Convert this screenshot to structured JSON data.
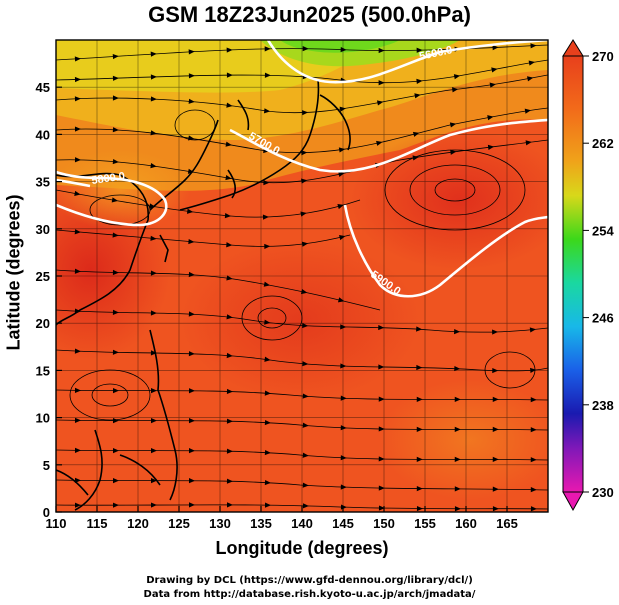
{
  "title": "GSM 18Z23Jun2025 (500.0hPa)",
  "axes": {
    "xlabel": "Longitude (degrees)",
    "ylabel": "Latitude  (degrees)",
    "x_ticks": [
      "110",
      "115",
      "120",
      "125",
      "130",
      "135",
      "140",
      "145",
      "150",
      "155",
      "160",
      "165"
    ],
    "y_ticks": [
      "0",
      "5",
      "10",
      "15",
      "20",
      "25",
      "30",
      "35",
      "40",
      "45"
    ]
  },
  "colorbar": {
    "labels": [
      "270",
      "262",
      "254",
      "246",
      "238",
      "230"
    ],
    "min": 230,
    "max": 270
  },
  "contours": [
    {
      "label": "5900.0",
      "value": 5900
    },
    {
      "label": "5800.0",
      "value": 5800
    },
    {
      "label": "5700.0",
      "value": 5700
    },
    {
      "label": "5600.0",
      "value": 5600
    }
  ],
  "credits": {
    "line1": "Drawing by DCL (https://www.gfd-dennou.org/library/dcl/)",
    "line2": "Data from http://database.rish.kyoto-u.ac.jp/arch/jmadata/"
  },
  "map": {
    "lon_range": [
      110,
      170
    ],
    "lat_range": [
      0,
      50
    ],
    "colors": {
      "warm": "#e8371c",
      "orange": "#f07a18",
      "yellow": "#e8c41c",
      "green": "#6fd81c"
    }
  }
}
